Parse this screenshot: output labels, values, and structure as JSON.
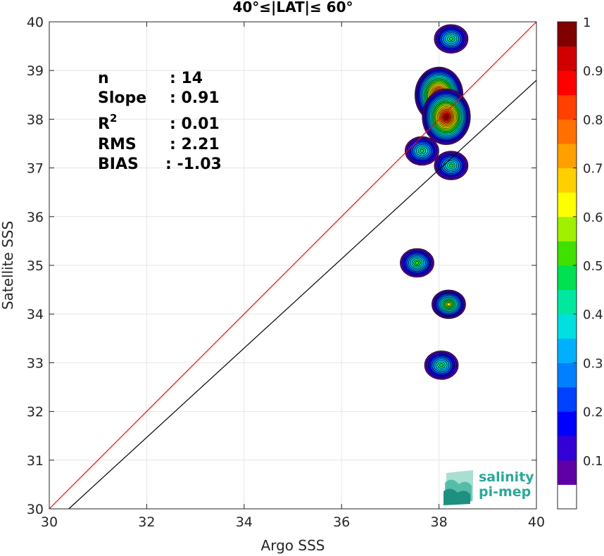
{
  "chart_data": {
    "type": "contour density scatter",
    "title": "40°≤|LAT|≤ 60°",
    "xlabel": "Argo SSS",
    "ylabel": "Satellite SSS",
    "xlim": [
      30,
      40
    ],
    "ylim": [
      30,
      40
    ],
    "xticks": [
      "30",
      "32",
      "34",
      "36",
      "38",
      "40"
    ],
    "yticks": [
      "30",
      "31",
      "32",
      "33",
      "34",
      "35",
      "36",
      "37",
      "38",
      "39",
      "40"
    ],
    "grid": true,
    "lines": [
      {
        "name": "1:1 line",
        "color": "#ff0000",
        "x": [
          30,
          40
        ],
        "y": [
          30,
          40
        ]
      },
      {
        "name": "regression fit",
        "color": "#000000",
        "x": [
          30.4,
          40
        ],
        "y": [
          30,
          38.8
        ]
      }
    ],
    "clusters": [
      {
        "x": 38.25,
        "y": 39.65,
        "peak": 0.45
      },
      {
        "x": 38.0,
        "y": 38.5,
        "peak": 1.0
      },
      {
        "x": 38.15,
        "y": 38.05,
        "peak": 1.0
      },
      {
        "x": 37.65,
        "y": 37.35,
        "peak": 0.45
      },
      {
        "x": 38.25,
        "y": 37.05,
        "peak": 0.45
      },
      {
        "x": 37.55,
        "y": 35.05,
        "peak": 0.5
      },
      {
        "x": 38.2,
        "y": 34.2,
        "peak": 0.65
      },
      {
        "x": 38.05,
        "y": 32.95,
        "peak": 0.45
      }
    ],
    "stats": [
      {
        "label": "n",
        "value": ": 14"
      },
      {
        "label": "Slope",
        "value": ": 0.91"
      },
      {
        "label": "R2",
        "value": ": 0.01"
      },
      {
        "label": "RMS",
        "value": ": 2.21"
      },
      {
        "label": "BIAS",
        "value": ": -1.03"
      }
    ],
    "colorbar": {
      "range": [
        0,
        1
      ],
      "ticks": [
        "0.1",
        "0.2",
        "0.3",
        "0.4",
        "0.5",
        "0.6",
        "0.7",
        "0.8",
        "0.9",
        "1"
      ],
      "colors": [
        "#ffffff",
        "#5e00a6",
        "#3300d6",
        "#0000ff",
        "#0040ff",
        "#0080ff",
        "#00b0ff",
        "#00e0e0",
        "#00e8a0",
        "#00e050",
        "#40e000",
        "#a0f000",
        "#ffff00",
        "#ffd000",
        "#ffa000",
        "#ff7000",
        "#ff4000",
        "#ff0000",
        "#d00000",
        "#800000"
      ]
    }
  },
  "logo": {
    "line1": "salinity",
    "line2": "pi-mep"
  }
}
